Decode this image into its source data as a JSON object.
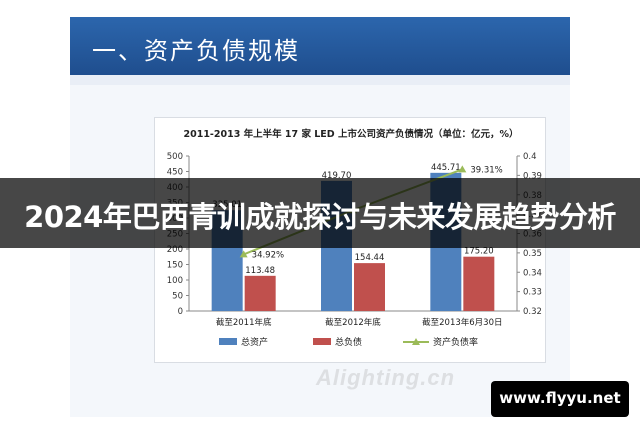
{
  "slide": {
    "title": "一、资产负债规模",
    "watermark": "Alighting.cn"
  },
  "overlay": {
    "headline": "2024年巴西青训成就探讨与未来发展趋势分析"
  },
  "site_badge": {
    "text": "www.flyyu.net"
  },
  "colors": {
    "header_blue": "#1f4e8e",
    "total_assets": "#4f81bd",
    "total_liabilities": "#c0504d",
    "debt_ratio": "#9bbb59"
  },
  "chart_data": {
    "type": "bar",
    "title": "2011-2013 年上半年 17 家 LED 上市公司资产负债情况（单位：亿元，%）",
    "categories": [
      "截至2011年底",
      "截至2012年底",
      "截至2013年6月30日"
    ],
    "series": [
      {
        "name": "总资产",
        "type": "bar",
        "axis": "left",
        "color": "#4f81bd",
        "values": [
          325.01,
          419.7,
          445.71
        ],
        "labels": [
          "325.01",
          "419.70",
          "445.71"
        ]
      },
      {
        "name": "总负债",
        "type": "bar",
        "axis": "left",
        "color": "#c0504d",
        "values": [
          113.48,
          154.44,
          175.2
        ],
        "labels": [
          "113.48",
          "154.44",
          "175.20"
        ]
      },
      {
        "name": "资产负债率",
        "type": "line",
        "axis": "right",
        "color": "#9bbb59",
        "values": [
          0.3492,
          0.372,
          0.3931
        ],
        "labels": [
          "34.92%",
          "",
          "39.31%"
        ]
      }
    ],
    "y_left": {
      "min": 0,
      "max": 500,
      "ticks": [
        0,
        50,
        100,
        150,
        200,
        250,
        300,
        350,
        400,
        450,
        500
      ]
    },
    "y_right": {
      "min": 0.32,
      "max": 0.4,
      "ticks": [
        "0.32",
        "0.33",
        "0.34",
        "0.35",
        "0.36",
        "0.37",
        "0.38",
        "0.39",
        "0.4"
      ]
    },
    "legend": {
      "position": "bottom"
    },
    "grid": false
  }
}
